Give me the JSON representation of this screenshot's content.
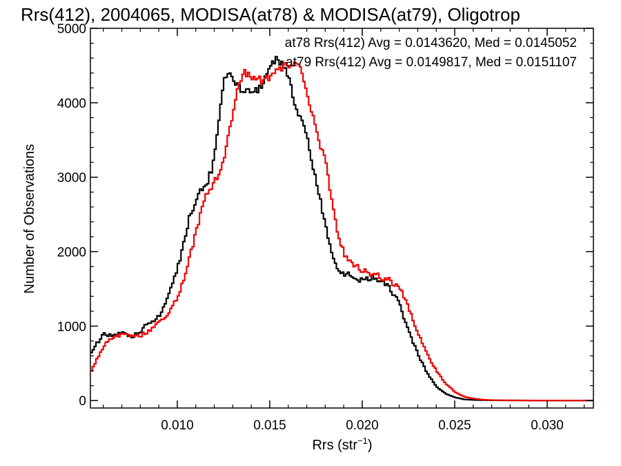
{
  "chart_data": {
    "type": "line",
    "title": "Rrs(412), 2004065, MODISA(at78) & MODISA(at79), Oligotrop",
    "xlabel": "Rrs (str",
    "xlabel_sup": "−1",
    "xlabel_end": ")",
    "ylabel": "Number of Observations",
    "xlim": [
      0.0053,
      0.0325
    ],
    "ylim": [
      -100,
      5000
    ],
    "xticks": [
      0.01,
      0.015,
      0.02,
      0.025,
      0.03
    ],
    "xtick_labels": [
      "0.010",
      "0.015",
      "0.020",
      "0.025",
      "0.030"
    ],
    "yticks": [
      0,
      1000,
      2000,
      3000,
      4000,
      5000
    ],
    "ytick_labels": [
      "0",
      "1000",
      "2000",
      "3000",
      "4000",
      "5000"
    ],
    "grid": false,
    "legend_position": "top-right",
    "series": [
      {
        "name": "at78 Rrs(412) Avg = 0.0143620, Med = 0.0145052",
        "color": "#000000",
        "x": [
          0.0053,
          0.0057,
          0.006,
          0.0065,
          0.007,
          0.0075,
          0.008,
          0.0085,
          0.009,
          0.0093,
          0.0096,
          0.01,
          0.0103,
          0.0106,
          0.011,
          0.0113,
          0.0116,
          0.0118,
          0.012,
          0.0123,
          0.0125,
          0.0128,
          0.013,
          0.0135,
          0.014,
          0.0145,
          0.015,
          0.0153,
          0.0155,
          0.0158,
          0.016,
          0.0163,
          0.0166,
          0.017,
          0.0173,
          0.0176,
          0.018,
          0.0183,
          0.0186,
          0.019,
          0.0195,
          0.02,
          0.0205,
          0.021,
          0.0213,
          0.0216,
          0.022,
          0.0223,
          0.0226,
          0.023,
          0.0235,
          0.024,
          0.0245,
          0.025,
          0.0255,
          0.026,
          0.0265,
          0.027,
          0.028,
          0.03,
          0.0325
        ],
        "y": [
          650,
          800,
          900,
          870,
          900,
          850,
          950,
          1050,
          1150,
          1300,
          1500,
          1800,
          2100,
          2450,
          2700,
          2850,
          2950,
          3100,
          3400,
          4000,
          4350,
          4400,
          4300,
          4150,
          4150,
          4200,
          4500,
          4600,
          4550,
          4500,
          4300,
          4000,
          3800,
          3500,
          3100,
          2800,
          2300,
          2000,
          1800,
          1700,
          1650,
          1600,
          1650,
          1600,
          1550,
          1450,
          1300,
          1050,
          850,
          600,
          350,
          180,
          90,
          40,
          15,
          8,
          5,
          3,
          2,
          1,
          0
        ]
      },
      {
        "name": "at79 Rrs(412) Avg = 0.0149817, Med = 0.0151107",
        "color": "#ee0000",
        "x": [
          0.0053,
          0.0057,
          0.006,
          0.0065,
          0.007,
          0.0075,
          0.008,
          0.0085,
          0.009,
          0.0095,
          0.01,
          0.0103,
          0.0106,
          0.011,
          0.0113,
          0.0116,
          0.012,
          0.0123,
          0.0126,
          0.013,
          0.0133,
          0.0136,
          0.014,
          0.0145,
          0.015,
          0.0155,
          0.0158,
          0.016,
          0.0163,
          0.0166,
          0.017,
          0.0173,
          0.0176,
          0.018,
          0.0183,
          0.0186,
          0.019,
          0.0195,
          0.02,
          0.0205,
          0.021,
          0.0215,
          0.022,
          0.0223,
          0.0226,
          0.023,
          0.0235,
          0.024,
          0.0245,
          0.025,
          0.0255,
          0.026,
          0.0265,
          0.027,
          0.0275,
          0.028,
          0.029,
          0.03,
          0.0325
        ],
        "y": [
          400,
          600,
          750,
          850,
          900,
          880,
          880,
          950,
          1050,
          1200,
          1400,
          1600,
          1900,
          2300,
          2600,
          2800,
          2950,
          3100,
          3400,
          3900,
          4300,
          4400,
          4350,
          4300,
          4350,
          4450,
          4500,
          4500,
          4550,
          4450,
          4100,
          3800,
          3500,
          3200,
          2700,
          2300,
          1950,
          1800,
          1750,
          1700,
          1650,
          1600,
          1500,
          1350,
          1150,
          900,
          600,
          380,
          220,
          110,
          50,
          25,
          12,
          6,
          4,
          2,
          1,
          1,
          0
        ]
      }
    ]
  }
}
